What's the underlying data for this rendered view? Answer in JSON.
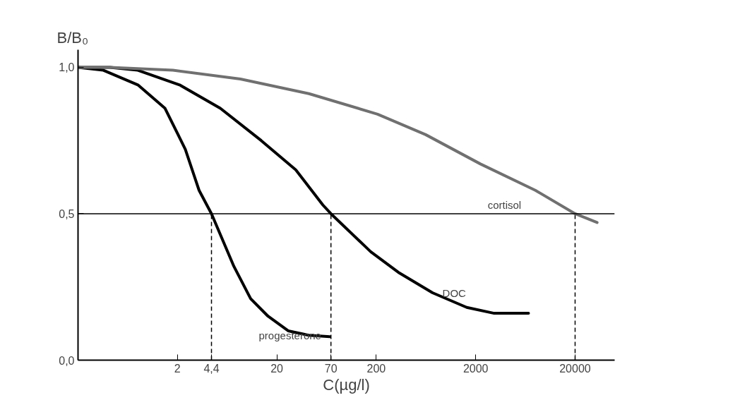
{
  "chart_data": {
    "type": "line",
    "xlabel": "C(µg/l)",
    "ylabel": "B/B₀",
    "log": "x",
    "xlim": [
      0.2,
      50000
    ],
    "ylim": [
      0,
      1.06
    ],
    "xticks": [
      2,
      {
        "value": 4.4,
        "label": "4,4"
      },
      20,
      70,
      200,
      2000,
      20000
    ],
    "yticks": [
      {
        "value": 0,
        "label": "0,0"
      },
      {
        "value": 0.5,
        "label": "0,5"
      },
      {
        "value": 1,
        "label": "1,0"
      }
    ],
    "grid": false,
    "marker": "none",
    "line_style": "solid",
    "series": [
      {
        "name": "progesterone",
        "color": "#000000",
        "x": [
          0.2,
          0.36,
          0.8,
          1.5,
          2.4,
          3.3,
          4.4,
          7.4,
          10.9,
          16.3,
          26,
          42,
          68
        ],
        "values": [
          1.0,
          0.99,
          0.94,
          0.86,
          0.72,
          0.58,
          0.5,
          0.32,
          0.21,
          0.15,
          0.1,
          0.085,
          0.08
        ]
      },
      {
        "name": "DOC",
        "color": "#000000",
        "x": [
          0.2,
          0.42,
          0.8,
          2.1,
          5.4,
          13.9,
          31,
          58,
          70,
          176,
          333,
          736,
          1626,
          3070,
          6800
        ],
        "values": [
          1.0,
          1.0,
          0.99,
          0.94,
          0.86,
          0.75,
          0.65,
          0.53,
          0.5,
          0.37,
          0.3,
          0.23,
          0.18,
          0.16,
          0.16
        ]
      },
      {
        "name": "cortisol",
        "color": "#707070",
        "x": [
          0.2,
          0.42,
          1.8,
          8.6,
          42,
          206,
          628,
          2230,
          7960,
          20000,
          33300
        ],
        "values": [
          1.0,
          1.0,
          0.99,
          0.96,
          0.91,
          0.84,
          0.77,
          0.67,
          0.58,
          0.5,
          0.47
        ]
      }
    ],
    "ref_lines": [
      {
        "axis": "y",
        "value": 0.5,
        "color": "#000000",
        "line_style": "solid"
      },
      {
        "axis": "x",
        "value": 4.4,
        "color": "#000000",
        "line_style": "dashed"
      },
      {
        "axis": "x",
        "value": 70,
        "color": "#000000",
        "line_style": "dashed"
      },
      {
        "axis": "x",
        "value": 20000,
        "color": "#000000",
        "line_style": "dashed"
      }
    ]
  }
}
